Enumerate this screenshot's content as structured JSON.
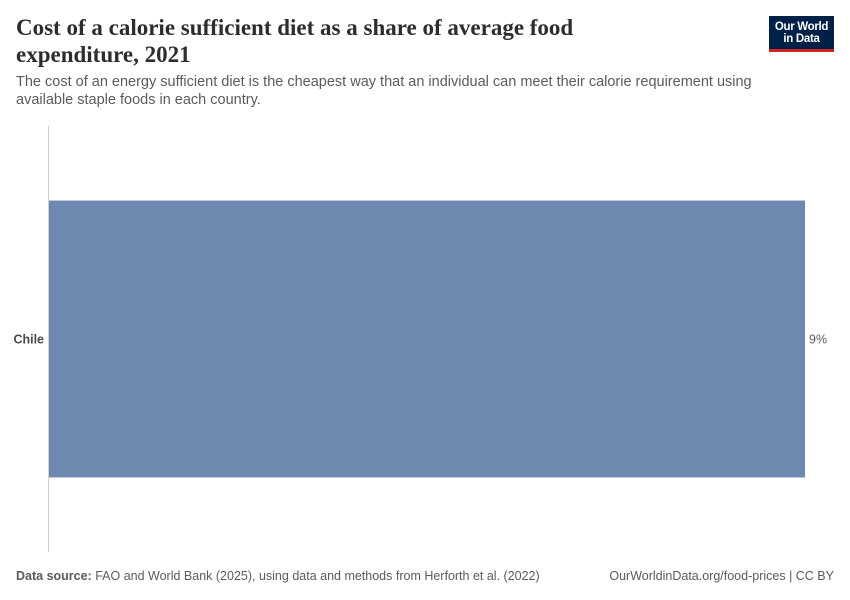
{
  "header": {
    "title": "Cost of a calorie sufficient diet as a share of average food expenditure, 2021",
    "subtitle": "The cost of an energy sufficient diet is the cheapest way that an individual can meet their calorie requirement using available staple foods in each country.",
    "logo_line1": "Our World",
    "logo_line2": "in Data"
  },
  "footer": {
    "source_label": "Data source:",
    "source_text": "FAO and World Bank (2025), using data and methods from Herforth et al. (2022)",
    "link_text": "OurWorldinData.org/food-prices | CC BY"
  },
  "colors": {
    "bar": "#6f88b0",
    "axis": "#d0d0d0",
    "title": "#2d2d2d",
    "text": "#5b5b5b",
    "logo_bg": "#002147",
    "logo_accent": "#ce261e"
  },
  "chart_data": {
    "type": "bar",
    "orientation": "horizontal",
    "title": "Cost of a calorie sufficient diet as a share of average food expenditure, 2021",
    "categories": [
      "Chile"
    ],
    "values": [
      9
    ],
    "value_labels": [
      "9%"
    ],
    "unit": "%",
    "xlim": [
      0,
      9
    ],
    "grid": false,
    "legend": "none"
  }
}
